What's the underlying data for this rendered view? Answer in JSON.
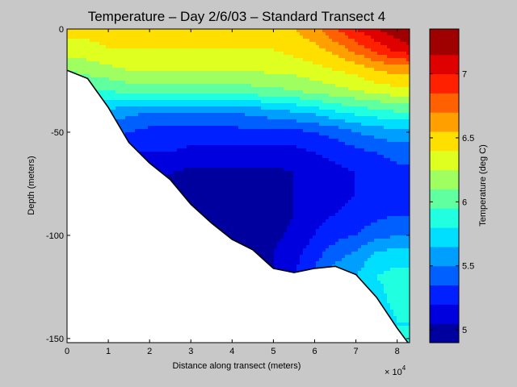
{
  "chart_data": {
    "type": "heatmap",
    "title": "Temperature – Day 2/6/03 – Standard Transect 4",
    "xlabel": "Distance along transect (meters)",
    "ylabel": "Depth (meters)",
    "xlim": [
      0,
      8.3
    ],
    "x_multiplier_label": "× 10",
    "x_multiplier_exponent": "4",
    "ylim": [
      -152,
      0
    ],
    "x_ticks": [
      "0",
      "1",
      "2",
      "3",
      "4",
      "5",
      "6",
      "7",
      "8"
    ],
    "y_ticks": [
      "0",
      "-50",
      "-100",
      "-150"
    ],
    "colorbar": {
      "label": "Temperature (deg C)",
      "range": [
        4.9,
        7.35
      ],
      "ticks": [
        "5",
        "5.5",
        "6",
        "6.5",
        "7"
      ],
      "levels": [
        4.9,
        5.05,
        5.2,
        5.35,
        5.5,
        5.65,
        5.8,
        5.95,
        6.1,
        6.25,
        6.4,
        6.55,
        6.7,
        6.85,
        7.0,
        7.15,
        7.35
      ]
    },
    "bottom_profile": {
      "x": [
        0,
        0.5,
        1.0,
        1.5,
        2.0,
        2.5,
        3.0,
        3.5,
        4.0,
        4.5,
        5.0,
        5.5,
        6.0,
        6.5,
        7.0,
        7.5,
        8.0,
        8.3
      ],
      "depth": [
        -20,
        -24,
        -38,
        -55,
        -65,
        -73,
        -85,
        -94,
        -102,
        -107,
        -116,
        -118,
        -116,
        -115,
        -119,
        -130,
        -145,
        -153
      ]
    },
    "temperature_field": {
      "x": [
        0,
        0.5,
        1.0,
        1.5,
        2.0,
        2.5,
        3.0,
        3.5,
        4.0,
        4.5,
        5.0,
        5.5,
        6.0,
        6.5,
        7.0,
        7.5,
        8.0,
        8.3
      ],
      "depth": [
        0,
        -10,
        -20,
        -30,
        -40,
        -50,
        -60,
        -70,
        -80,
        -90,
        -100,
        -110,
        -120,
        -130,
        -140,
        -150
      ],
      "values": [
        [
          6.45,
          6.45,
          6.45,
          6.45,
          6.45,
          6.45,
          6.45,
          6.45,
          6.45,
          6.45,
          6.5,
          6.55,
          6.65,
          6.85,
          7.0,
          7.15,
          7.25,
          7.3
        ],
        [
          6.35,
          6.35,
          6.4,
          6.4,
          6.4,
          6.4,
          6.4,
          6.4,
          6.4,
          6.4,
          6.4,
          6.45,
          6.5,
          6.6,
          6.75,
          6.9,
          7.05,
          7.1
        ],
        [
          6.1,
          6.15,
          6.2,
          6.25,
          6.25,
          6.25,
          6.25,
          6.25,
          6.25,
          6.25,
          6.3,
          6.3,
          6.35,
          6.4,
          6.45,
          6.55,
          6.6,
          6.6
        ],
        [
          5.9,
          5.95,
          5.95,
          6.0,
          6.0,
          6.0,
          6.0,
          6.0,
          6.0,
          6.05,
          6.05,
          6.1,
          6.15,
          6.2,
          6.25,
          6.3,
          6.35,
          6.35
        ],
        [
          5.65,
          5.65,
          5.6,
          5.55,
          5.5,
          5.5,
          5.5,
          5.5,
          5.5,
          5.55,
          5.6,
          5.65,
          5.7,
          5.8,
          5.85,
          5.9,
          5.95,
          5.95
        ],
        [
          5.45,
          5.45,
          5.4,
          5.35,
          5.3,
          5.3,
          5.3,
          5.3,
          5.3,
          5.3,
          5.3,
          5.3,
          5.35,
          5.4,
          5.5,
          5.55,
          5.6,
          5.6
        ],
        [
          5.35,
          5.3,
          5.25,
          5.2,
          5.2,
          5.2,
          5.15,
          5.15,
          5.15,
          5.15,
          5.15,
          5.15,
          5.2,
          5.25,
          5.3,
          5.35,
          5.4,
          5.4
        ],
        [
          5.3,
          5.25,
          5.2,
          5.15,
          5.1,
          5.05,
          5.0,
          5.0,
          5.0,
          5.0,
          5.0,
          5.05,
          5.1,
          5.15,
          5.2,
          5.25,
          5.3,
          5.3
        ],
        [
          5.25,
          5.2,
          5.15,
          5.1,
          5.05,
          5.0,
          4.95,
          4.92,
          4.92,
          4.95,
          5.0,
          5.05,
          5.1,
          5.15,
          5.2,
          5.25,
          5.3,
          5.3
        ],
        [
          5.25,
          5.2,
          5.15,
          5.1,
          5.05,
          5.0,
          4.95,
          4.92,
          4.92,
          4.95,
          5.0,
          5.05,
          5.15,
          5.2,
          5.25,
          5.3,
          5.35,
          5.35
        ],
        [
          5.25,
          5.2,
          5.15,
          5.1,
          5.05,
          5.0,
          4.95,
          4.92,
          4.93,
          4.96,
          5.02,
          5.08,
          5.2,
          5.3,
          5.35,
          5.45,
          5.5,
          5.5
        ],
        [
          5.25,
          5.2,
          5.15,
          5.1,
          5.05,
          5.0,
          4.97,
          4.95,
          4.95,
          4.98,
          5.05,
          5.15,
          5.3,
          5.45,
          5.55,
          5.7,
          5.75,
          5.75
        ],
        [
          5.25,
          5.2,
          5.15,
          5.1,
          5.05,
          5.0,
          4.97,
          4.95,
          4.95,
          4.98,
          5.05,
          5.2,
          5.4,
          5.6,
          5.65,
          5.8,
          5.85,
          5.85
        ],
        [
          5.25,
          5.2,
          5.15,
          5.1,
          5.05,
          5.0,
          4.97,
          4.95,
          4.95,
          4.98,
          5.05,
          5.2,
          5.4,
          5.6,
          5.7,
          5.75,
          5.85,
          5.85
        ],
        [
          5.25,
          5.2,
          5.15,
          5.1,
          5.05,
          5.0,
          4.97,
          4.95,
          4.95,
          4.98,
          5.05,
          5.2,
          5.4,
          5.6,
          5.7,
          5.75,
          5.8,
          5.8
        ],
        [
          5.25,
          5.2,
          5.15,
          5.1,
          5.05,
          5.0,
          4.97,
          4.95,
          4.95,
          4.98,
          5.05,
          5.2,
          5.4,
          5.6,
          5.7,
          5.75,
          5.8,
          5.8
        ]
      ]
    },
    "colormap": "jet",
    "grid": false,
    "legend": "colorbar-right"
  }
}
